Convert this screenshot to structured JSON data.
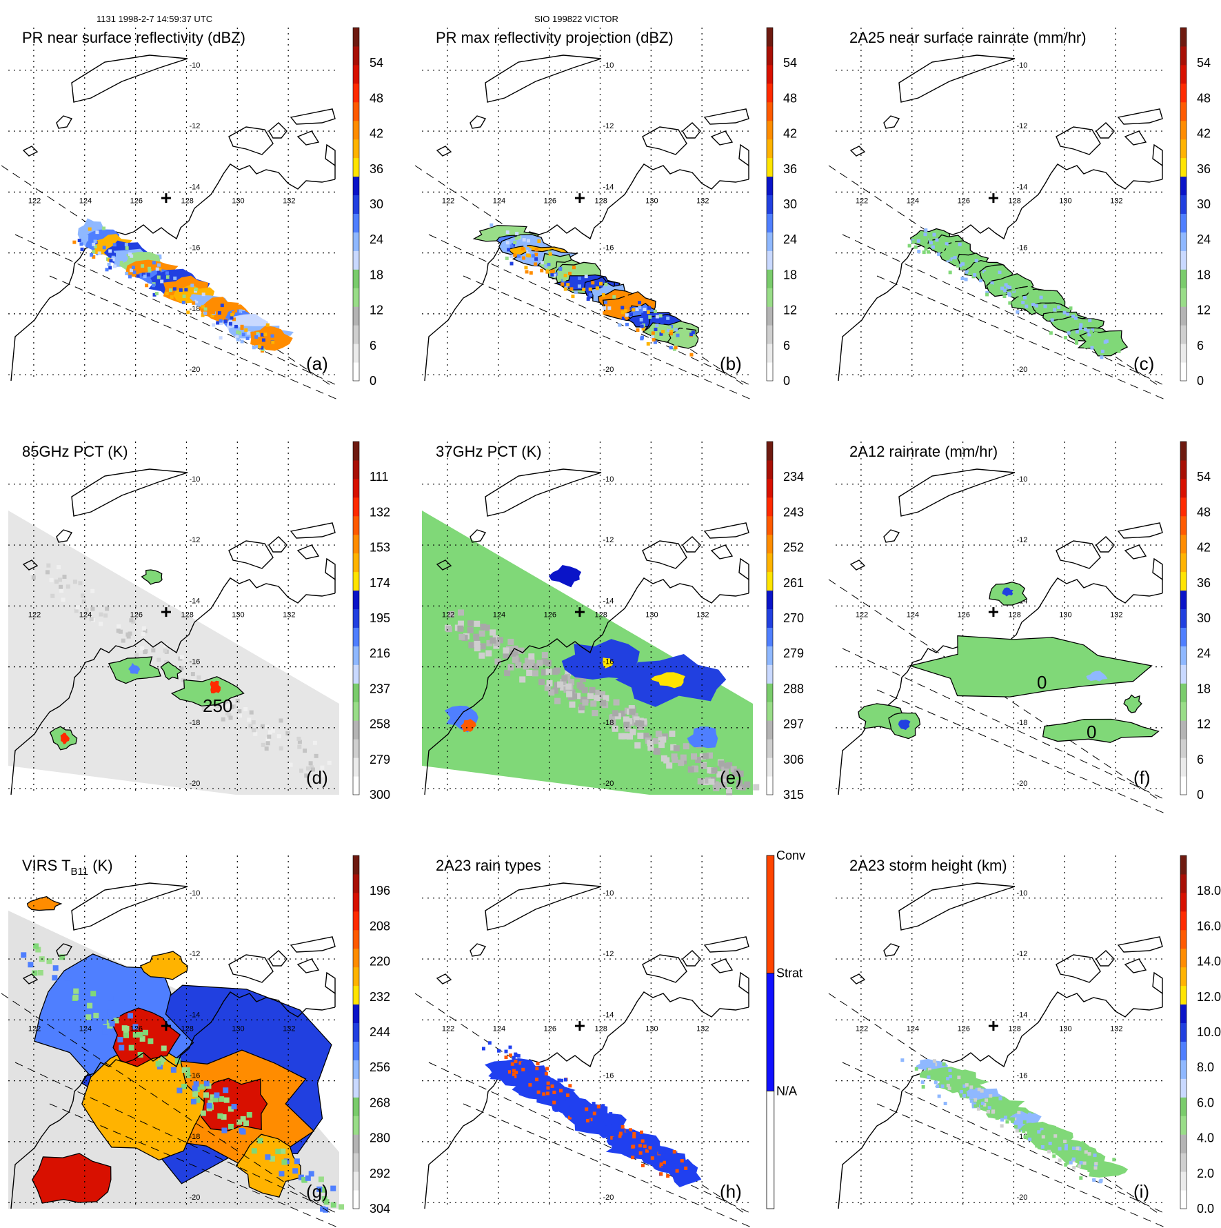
{
  "header": {
    "left": "1131 1998-2-7 14:59:37 UTC",
    "center": "SIO 199822 VICTOR"
  },
  "map": {
    "lon_labels": [
      "122",
      "124",
      "126",
      "128",
      "130",
      "132"
    ],
    "lat_labels": [
      "-10",
      "-12",
      "-14",
      "-16",
      "-18",
      "-20"
    ],
    "lon_range": [
      121,
      134
    ],
    "lat_range": [
      -20.2,
      -8.6
    ]
  },
  "colors": {
    "scale": [
      "#ffffff",
      "#ebebeb",
      "#cfcfcf",
      "#b4b4b4",
      "#99dd88",
      "#7acc6c",
      "#c9d9ff",
      "#8fb8ff",
      "#4f7fff",
      "#2140e0",
      "#0a14c8",
      "#ffe400",
      "#ffb300",
      "#ff8c00",
      "#ff5a00",
      "#ff2a00",
      "#d81000",
      "#a80f05",
      "#6e1a10"
    ],
    "green": "#80d878",
    "grey": "#cfcfcf",
    "blue": "#2040f0",
    "orange": "#ff5500",
    "rain_types": [
      "#ffffff",
      "#1010ff",
      "#ff4500"
    ]
  },
  "panels": [
    {
      "id": "a",
      "title": "PR near surface reflectivity (dBZ)",
      "label": "(a)",
      "cb_ticks": [
        "0",
        "6",
        "12",
        "18",
        "24",
        "30",
        "36",
        "42",
        "48",
        "54"
      ]
    },
    {
      "id": "b",
      "title": "PR max reflectivity projection (dBZ)",
      "label": "(b)",
      "cb_ticks": [
        "0",
        "6",
        "12",
        "18",
        "24",
        "30",
        "36",
        "42",
        "48",
        "54"
      ]
    },
    {
      "id": "c",
      "title": "2A25 near surface rainrate (mm/hr)",
      "label": "(c)",
      "cb_ticks": [
        "0",
        "6",
        "12",
        "18",
        "24",
        "30",
        "36",
        "42",
        "48",
        "54"
      ]
    },
    {
      "id": "d",
      "title": "85GHz PCT (K)",
      "label": "(d)",
      "cb_ticks": [
        "300",
        "279",
        "258",
        "237",
        "216",
        "195",
        "174",
        "153",
        "132",
        "111"
      ],
      "contour_label": "250"
    },
    {
      "id": "e",
      "title": "37GHz PCT (K)",
      "label": "(e)",
      "cb_ticks": [
        "315",
        "306",
        "297",
        "288",
        "279",
        "270",
        "261",
        "252",
        "243",
        "234"
      ]
    },
    {
      "id": "f",
      "title": "2A12 rainrate (mm/hr)",
      "label": "(f)",
      "cb_ticks": [
        "0",
        "6",
        "12",
        "18",
        "24",
        "30",
        "36",
        "42",
        "48",
        "54"
      ],
      "contour_labels": [
        "0",
        "0"
      ]
    },
    {
      "id": "g",
      "title_main": "VIRS T",
      "title_sub": "B11",
      "title_unit": " (K)",
      "label": "(g)",
      "cb_ticks": [
        "304",
        "292",
        "280",
        "268",
        "256",
        "244",
        "232",
        "220",
        "208",
        "196"
      ]
    },
    {
      "id": "h",
      "title": "2A23 rain types",
      "label": "(h)",
      "cb_labels": [
        "N/A",
        "Strat",
        "Conv"
      ]
    },
    {
      "id": "i",
      "title": "2A23 storm height (km)",
      "label": "(i)",
      "cb_ticks": [
        "0.0",
        "2.0",
        "4.0",
        "6.0",
        "8.0",
        "10.0",
        "12.0",
        "14.0",
        "16.0",
        "18.0"
      ]
    }
  ]
}
